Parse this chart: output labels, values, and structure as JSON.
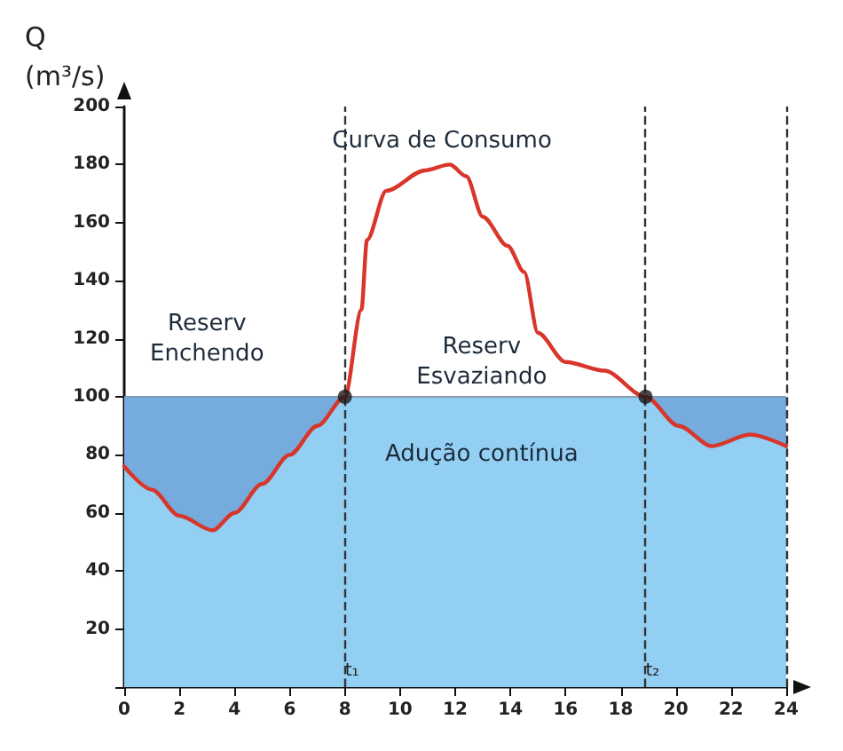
{
  "chart_data": {
    "type": "line",
    "ylabel": "Q (m³/s)",
    "xlim": [
      0,
      24
    ],
    "xticks": [
      0,
      2,
      4,
      6,
      8,
      10,
      12,
      14,
      16,
      18,
      20,
      22,
      24
    ],
    "ylim": [
      0,
      200
    ],
    "yticks": [
      {
        "value": 0,
        "label": null
      },
      20,
      40,
      60,
      80,
      100,
      120,
      140,
      160,
      180,
      200
    ],
    "grid": false,
    "series": [
      {
        "type": "area",
        "color": "#92cff2",
        "x": [
          0,
          24
        ],
        "values": [
          100,
          100
        ]
      },
      {
        "color": "#d8362a",
        "x": [
          0,
          1,
          2,
          3.2,
          4,
          5,
          6,
          7,
          8,
          8.6,
          8.8,
          9.5,
          10.9,
          11.8,
          12.4,
          13,
          13.9,
          14.5,
          15,
          16,
          17.4,
          18.9,
          20.1,
          21.3,
          22.7,
          24
        ],
        "values": [
          76,
          68,
          59,
          54,
          60,
          70,
          80,
          90,
          100,
          130,
          154,
          171,
          178,
          180,
          176,
          162,
          152,
          143,
          122,
          112,
          109,
          100,
          90,
          83,
          87,
          83
        ]
      },
      {
        "type": "scatter",
        "color": "#1a1a1a",
        "marker": "circle",
        "x": [
          8,
          18.9
        ],
        "values": [
          100,
          100
        ]
      }
    ],
    "ref_lines": [
      {
        "axis": "x",
        "value": 8,
        "label": "t₁",
        "line_style": "dashed",
        "color": "#333333"
      },
      {
        "axis": "x",
        "value": 18.9,
        "label": "t₂",
        "line_style": "dashed",
        "color": "#333333"
      },
      {
        "axis": "x",
        "value": 24,
        "label": null,
        "line_style": "dashed",
        "color": "#333333"
      }
    ],
    "annotations": [
      "Curva de Consumo",
      "Reserv Enchendo",
      "Reserv Esvaziando",
      "Adução contínua"
    ]
  }
}
